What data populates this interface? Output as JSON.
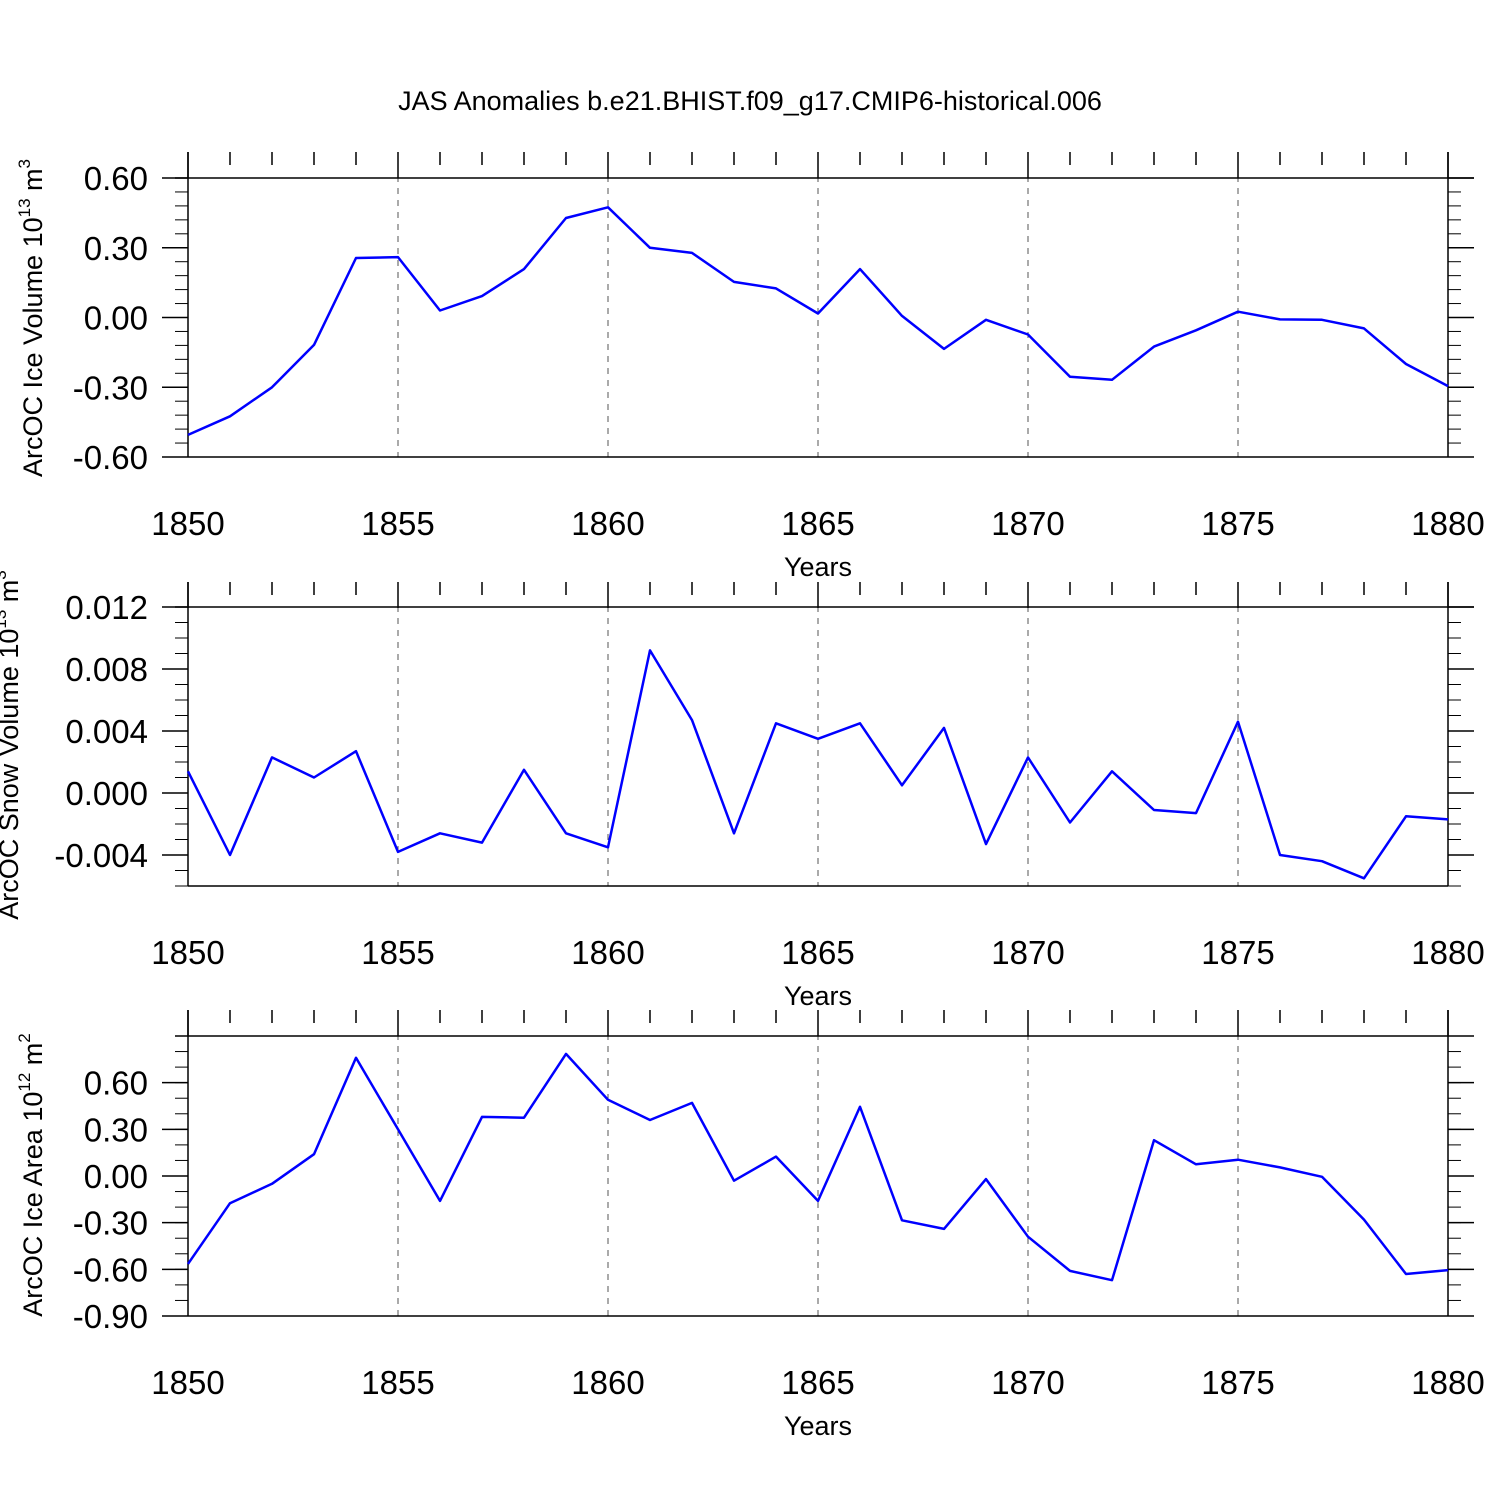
{
  "title": "JAS Anomalies b.e21.BHIST.f09_g17.CMIP6-historical.006",
  "line_color": "#0000ff",
  "chart_data": [
    {
      "type": "line",
      "ylabel": {
        "main": "ArcOC Ice Volume 10",
        "exp": "13",
        "mid": " m",
        "unit_exp": "3"
      },
      "xlabel": "Years",
      "xlim": [
        1850,
        1880
      ],
      "ylim": [
        -0.6,
        0.6
      ],
      "xticks": [
        "1850",
        "1855",
        "1860",
        "1865",
        "1870",
        "1875",
        "1880"
      ],
      "yticks": [
        {
          "v": 0.6,
          "label": "0.60"
        },
        {
          "v": 0.3,
          "label": "0.30"
        },
        {
          "v": 0.0,
          "label": "0.00"
        },
        {
          "v": -0.3,
          "label": "-0.30"
        },
        {
          "v": -0.6,
          "label": "-0.60"
        }
      ],
      "yminor": 0.06,
      "grid_x": true,
      "x": [
        1850,
        1851,
        1852,
        1853,
        1854,
        1855,
        1856,
        1857,
        1858,
        1859,
        1860,
        1861,
        1862,
        1863,
        1864,
        1865,
        1866,
        1867,
        1868,
        1869,
        1870,
        1871,
        1872,
        1873,
        1874,
        1875,
        1876,
        1877,
        1878,
        1879,
        1880
      ],
      "values": [
        -0.505,
        -0.425,
        -0.3,
        -0.118,
        0.256,
        0.26,
        0.03,
        0.092,
        0.208,
        0.428,
        0.474,
        0.3,
        0.278,
        0.153,
        0.125,
        0.017,
        0.208,
        0.007,
        -0.135,
        -0.01,
        -0.073,
        -0.255,
        -0.268,
        -0.125,
        -0.055,
        0.025,
        -0.008,
        -0.01,
        -0.047,
        -0.2,
        -0.295
      ]
    },
    {
      "type": "line",
      "ylabel": {
        "main": "ArcOC Snow Volume 10",
        "exp": "13",
        "mid": " m",
        "unit_exp": "3"
      },
      "xlabel": "Years",
      "xlim": [
        1850,
        1880
      ],
      "ylim": [
        -0.006,
        0.012
      ],
      "xticks": [
        "1850",
        "1855",
        "1860",
        "1865",
        "1870",
        "1875",
        "1880"
      ],
      "yticks": [
        {
          "v": 0.012,
          "label": "0.012"
        },
        {
          "v": 0.008,
          "label": "0.008"
        },
        {
          "v": 0.004,
          "label": "0.004"
        },
        {
          "v": 0.0,
          "label": "0.000"
        },
        {
          "v": -0.004,
          "label": "-0.004"
        }
      ],
      "yminor": 0.001,
      "grid_x": true,
      "x": [
        1850,
        1851,
        1852,
        1853,
        1854,
        1855,
        1856,
        1857,
        1858,
        1859,
        1860,
        1861,
        1862,
        1863,
        1864,
        1865,
        1866,
        1867,
        1868,
        1869,
        1870,
        1871,
        1872,
        1873,
        1874,
        1875,
        1876,
        1877,
        1878,
        1879,
        1880
      ],
      "values": [
        0.0014,
        -0.004,
        0.0023,
        0.001,
        0.0027,
        -0.0038,
        -0.0026,
        -0.0032,
        0.0015,
        -0.0026,
        -0.0035,
        0.0092,
        0.0047,
        -0.0026,
        0.0045,
        0.0035,
        0.0045,
        0.0005,
        0.0042,
        -0.0033,
        0.0023,
        -0.0019,
        0.0014,
        -0.0011,
        -0.0013,
        0.0046,
        -0.004,
        -0.0044,
        -0.0055,
        -0.0015,
        -0.0017
      ]
    },
    {
      "type": "line",
      "ylabel": {
        "main": "ArcOC Ice Area 10",
        "exp": "12",
        "mid": " m",
        "unit_exp": "2"
      },
      "xlabel": "Years",
      "xlim": [
        1850,
        1880
      ],
      "ylim": [
        -0.9,
        0.9
      ],
      "xticks": [
        "1850",
        "1855",
        "1860",
        "1865",
        "1870",
        "1875",
        "1880"
      ],
      "yticks": [
        {
          "v": 0.6,
          "label": "0.60"
        },
        {
          "v": 0.3,
          "label": "0.30"
        },
        {
          "v": 0.0,
          "label": "0.00"
        },
        {
          "v": -0.3,
          "label": "-0.30"
        },
        {
          "v": -0.6,
          "label": "-0.60"
        },
        {
          "v": -0.9,
          "label": "-0.90"
        }
      ],
      "yminor": 0.1,
      "grid_x": true,
      "x": [
        1850,
        1851,
        1852,
        1853,
        1854,
        1855,
        1856,
        1857,
        1858,
        1859,
        1860,
        1861,
        1862,
        1863,
        1864,
        1865,
        1866,
        1867,
        1868,
        1869,
        1870,
        1871,
        1872,
        1873,
        1874,
        1875,
        1876,
        1877,
        1878,
        1879,
        1880
      ],
      "values": [
        -0.565,
        -0.175,
        -0.05,
        0.14,
        0.76,
        0.3,
        -0.16,
        0.38,
        0.375,
        0.785,
        0.49,
        0.36,
        0.47,
        -0.03,
        0.125,
        -0.16,
        0.445,
        -0.285,
        -0.34,
        -0.02,
        -0.39,
        -0.61,
        -0.67,
        0.23,
        0.075,
        0.105,
        0.055,
        -0.005,
        -0.28,
        -0.63,
        -0.605
      ]
    }
  ]
}
